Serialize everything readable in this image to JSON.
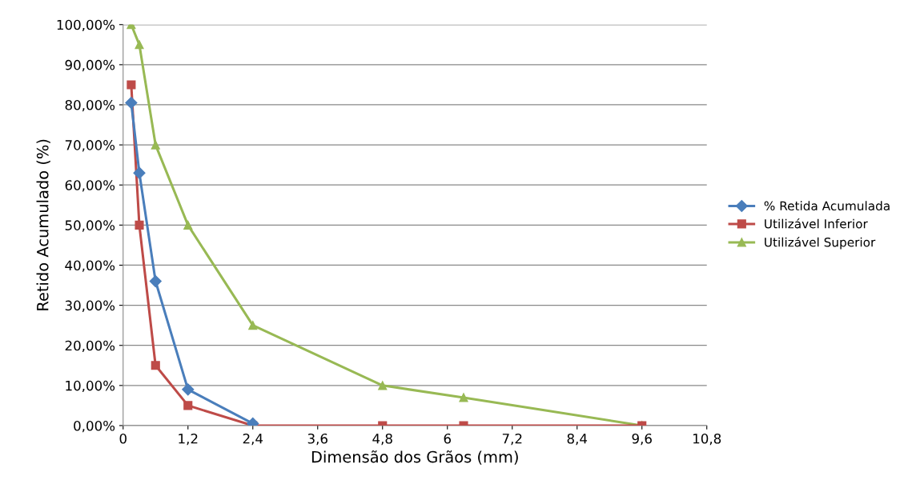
{
  "chart_data": {
    "type": "line",
    "xlabel": "Dimensão dos Grãos (mm)",
    "ylabel": "Retido Acumulado (%)",
    "x": [
      0.15,
      0.3,
      0.6,
      1.2,
      2.4,
      4.8,
      6.3,
      9.6
    ],
    "series": [
      {
        "name": "% Retida Acumulada",
        "color": "#4a7ebb",
        "marker": "diamond",
        "values": [
          80.5,
          63,
          36,
          9,
          0.5,
          null,
          null,
          null
        ]
      },
      {
        "name": "Utilizável Inferior",
        "color": "#be4b48",
        "marker": "square",
        "values": [
          85,
          50,
          15,
          5,
          0,
          0,
          0,
          0
        ]
      },
      {
        "name": "Utilizável Superior",
        "color": "#98b954",
        "marker": "triangle",
        "values": [
          100,
          95,
          70,
          50,
          25,
          10,
          7,
          0
        ]
      }
    ],
    "xlim": [
      0,
      10.8
    ],
    "xticks": [
      0,
      {
        "value": 1.2,
        "label": "1,2"
      },
      {
        "value": 2.4,
        "label": "2,4"
      },
      {
        "value": 3.6,
        "label": "3,6"
      },
      {
        "value": 4.8,
        "label": "4,8"
      },
      6,
      {
        "value": 7.2,
        "label": "7,2"
      },
      {
        "value": 8.4,
        "label": "8,4"
      },
      {
        "value": 9.6,
        "label": "9,6"
      },
      {
        "value": 10.8,
        "label": "10,8"
      }
    ],
    "ylim": [
      0,
      100
    ],
    "yticks": [
      {
        "value": 0,
        "label": "0,00%"
      },
      {
        "value": 10,
        "label": "10,00%"
      },
      {
        "value": 20,
        "label": "20,00%"
      },
      {
        "value": 30,
        "label": "30,00%"
      },
      {
        "value": 40,
        "label": "40,00%"
      },
      {
        "value": 50,
        "label": "50,00%"
      },
      {
        "value": 60,
        "label": "60,00%"
      },
      {
        "value": 70,
        "label": "70,00%"
      },
      {
        "value": 80,
        "label": "80,00%"
      },
      {
        "value": 90,
        "label": "90,00%"
      },
      {
        "value": 100,
        "label": "100,00%"
      }
    ],
    "grid": "y",
    "legend": "right",
    "line_style": "solid"
  }
}
